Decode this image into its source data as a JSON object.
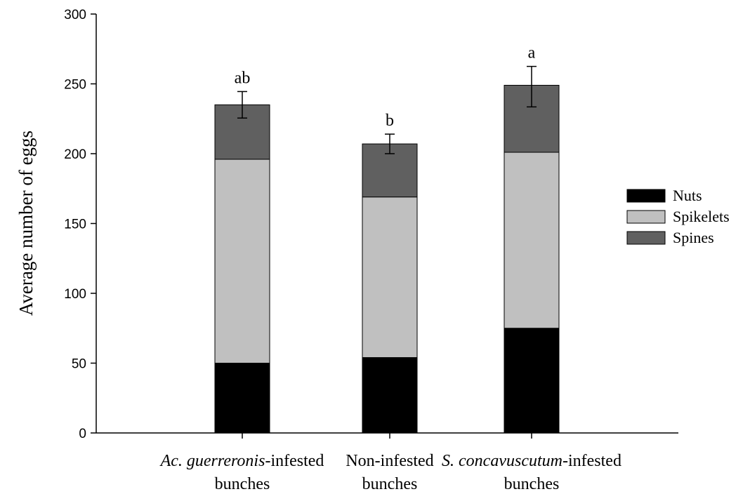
{
  "chart_data": {
    "type": "bar",
    "stacked": true,
    "categories": [
      {
        "line1": "-infested",
        "line1_italic": "Ac. guerreronis",
        "line2": "bunches"
      },
      {
        "line1": "Non-infested",
        "line1_italic": "",
        "line2": "bunches"
      },
      {
        "line1": "-infested",
        "line1_italic": "S. concavuscutum",
        "line2": "bunches"
      }
    ],
    "series": [
      {
        "name": "Nuts",
        "color": "#000000",
        "values": [
          50,
          54,
          75
        ]
      },
      {
        "name": "Spikelets",
        "color": "#c0c0c0",
        "values": [
          146,
          115,
          126
        ]
      },
      {
        "name": "Spines",
        "color": "#606060",
        "values": [
          39,
          38,
          48
        ]
      }
    ],
    "totals": [
      235,
      207,
      248
    ],
    "error": [
      9.5,
      7,
      14.5
    ],
    "significance_letters": [
      "ab",
      "b",
      "a"
    ],
    "ylabel": "Average number of eggs",
    "xlabel": "",
    "title": "",
    "ylim": [
      0,
      300
    ],
    "yticks": [
      0,
      50,
      100,
      150,
      200,
      250,
      300
    ],
    "legend_position": "right",
    "grid": false
  }
}
